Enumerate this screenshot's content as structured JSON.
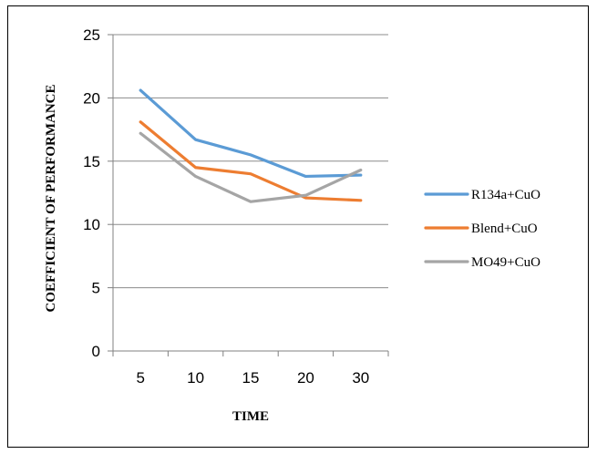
{
  "chart_data": {
    "type": "line",
    "categories": [
      "5",
      "10",
      "15",
      "20",
      "30"
    ],
    "series": [
      {
        "name": "R134a+CuO",
        "color": "#5B9BD5",
        "values": [
          20.6,
          16.7,
          15.5,
          13.8,
          13.9
        ]
      },
      {
        "name": "Blend+CuO",
        "color": "#ED7D31",
        "values": [
          18.1,
          14.5,
          14.0,
          12.1,
          11.9
        ]
      },
      {
        "name": "MO49+CuO",
        "color": "#A5A5A5",
        "values": [
          17.2,
          13.8,
          11.8,
          12.3,
          14.3
        ]
      }
    ],
    "title": "",
    "xlabel": "TIME",
    "ylabel": "COEFFICIENT OF PERFORMANCE",
    "ylim": [
      0,
      25
    ],
    "yticks": [
      "0",
      "5",
      "10",
      "15",
      "20",
      "25"
    ],
    "grid": true,
    "legend_position": "right"
  }
}
